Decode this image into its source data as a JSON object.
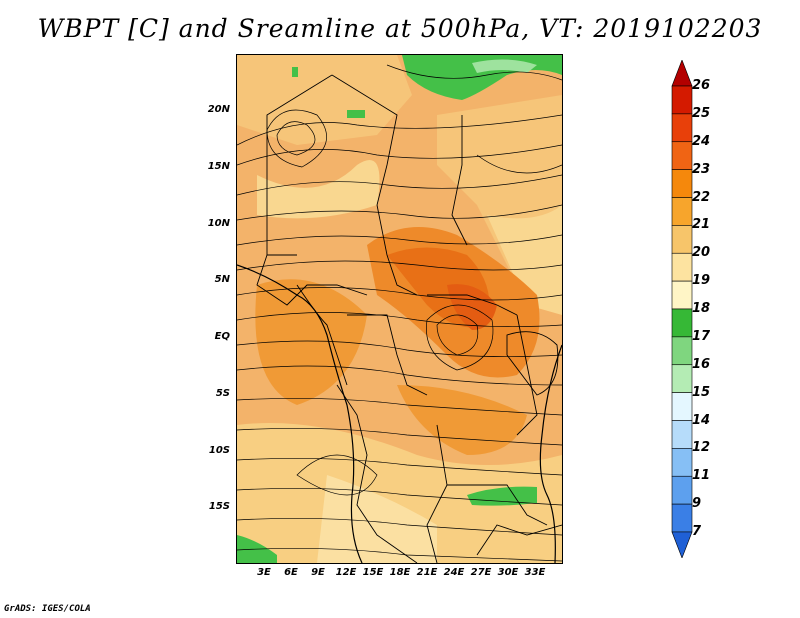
{
  "title": "WBPT [C] and Sreamline at 500hPa, VT: 2019102203",
  "credit": "GrADS: IGES/COLA",
  "lat_labels": [
    "20N",
    "15N",
    "10N",
    "5N",
    "EQ",
    "5S",
    "10S",
    "15S"
  ],
  "lon_labels": [
    "3E",
    "6E",
    "9E",
    "12E",
    "15E",
    "18E",
    "21E",
    "24E",
    "27E",
    "30E",
    "33E"
  ],
  "colorbar": {
    "labels": [
      "26",
      "25",
      "24",
      "23",
      "22",
      "21",
      "20",
      "19",
      "18",
      "17",
      "16",
      "15",
      "14",
      "12",
      "11",
      "9",
      "7"
    ],
    "colors": [
      "#b30000",
      "#d41a00",
      "#e8400a",
      "#f06414",
      "#f5880c",
      "#f7a52c",
      "#f7c56a",
      "#fde3a0",
      "#fff5c6",
      "#36b836",
      "#7fd67f",
      "#b4ecb4",
      "#e4f7ff",
      "#b6dcfa",
      "#86bff5",
      "#5da0ee",
      "#3a7fe6",
      "#1f60d6"
    ]
  },
  "chart_data": {
    "type": "heatmap",
    "title": "WBPT [C] and Sreamline at 500hPa, VT: 2019102203",
    "variable": "Wet-bulb potential temperature",
    "units": "C",
    "level": "500hPa",
    "valid_time": "2019102203",
    "lon_range": [
      0,
      36
    ],
    "lat_range": [
      -20,
      24
    ],
    "xticks": [
      "3E",
      "6E",
      "9E",
      "12E",
      "15E",
      "18E",
      "21E",
      "24E",
      "27E",
      "30E",
      "33E"
    ],
    "yticks": [
      "20N",
      "15N",
      "10N",
      "5N",
      "EQ",
      "5S",
      "10S",
      "15S"
    ],
    "colorbar_levels": [
      7,
      9,
      11,
      12,
      14,
      15,
      16,
      17,
      18,
      19,
      20,
      21,
      22,
      23,
      24,
      25,
      26
    ],
    "overlay": "streamlines"
  }
}
